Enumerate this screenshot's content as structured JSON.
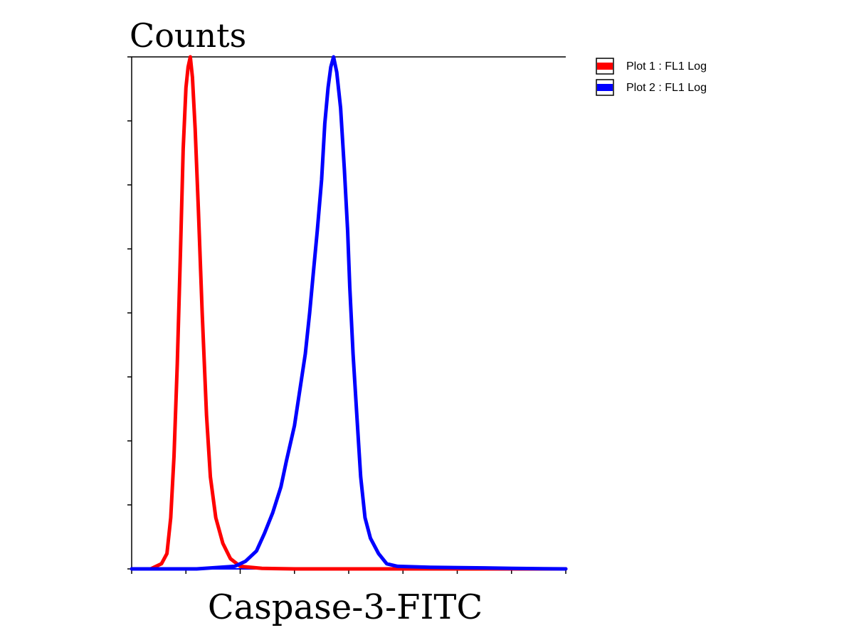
{
  "chart_data": {
    "type": "line",
    "title": "",
    "ylabel": "Counts",
    "xlabel": "Caspase-3-FITC",
    "x_scale": "log",
    "x_tick_count": 8,
    "y_tick_count": 8,
    "xlim": [
      0,
      8
    ],
    "ylim": [
      0,
      1
    ],
    "grid": false,
    "legend_position": "top-right (outside plot)",
    "series": [
      {
        "name": "Plot 1 : FL1 Log",
        "color": "#ff0000",
        "points": [
          [
            0.35,
            0.0
          ],
          [
            0.55,
            0.01
          ],
          [
            0.65,
            0.03
          ],
          [
            0.72,
            0.1
          ],
          [
            0.78,
            0.22
          ],
          [
            0.84,
            0.4
          ],
          [
            0.9,
            0.62
          ],
          [
            0.95,
            0.82
          ],
          [
            1.0,
            0.94
          ],
          [
            1.04,
            0.98
          ],
          [
            1.08,
            1.0
          ],
          [
            1.12,
            0.96
          ],
          [
            1.17,
            0.86
          ],
          [
            1.23,
            0.7
          ],
          [
            1.3,
            0.5
          ],
          [
            1.38,
            0.3
          ],
          [
            1.45,
            0.18
          ],
          [
            1.55,
            0.1
          ],
          [
            1.68,
            0.05
          ],
          [
            1.82,
            0.02
          ],
          [
            2.0,
            0.005
          ],
          [
            2.4,
            0.001
          ],
          [
            3.0,
            0.0
          ],
          [
            8.0,
            0.0
          ]
        ]
      },
      {
        "name": "Plot 2 : FL1 Log",
        "color": "#0000ff",
        "points": [
          [
            0.0,
            0.0
          ],
          [
            1.2,
            0.0
          ],
          [
            1.9,
            0.005
          ],
          [
            2.1,
            0.015
          ],
          [
            2.3,
            0.035
          ],
          [
            2.45,
            0.07
          ],
          [
            2.6,
            0.11
          ],
          [
            2.75,
            0.16
          ],
          [
            2.85,
            0.21
          ],
          [
            3.0,
            0.28
          ],
          [
            3.1,
            0.35
          ],
          [
            3.2,
            0.42
          ],
          [
            3.28,
            0.5
          ],
          [
            3.35,
            0.58
          ],
          [
            3.42,
            0.66
          ],
          [
            3.5,
            0.76
          ],
          [
            3.56,
            0.87
          ],
          [
            3.62,
            0.94
          ],
          [
            3.67,
            0.98
          ],
          [
            3.72,
            1.0
          ],
          [
            3.78,
            0.97
          ],
          [
            3.85,
            0.9
          ],
          [
            3.92,
            0.78
          ],
          [
            3.98,
            0.66
          ],
          [
            4.02,
            0.55
          ],
          [
            4.08,
            0.42
          ],
          [
            4.15,
            0.3
          ],
          [
            4.22,
            0.18
          ],
          [
            4.3,
            0.1
          ],
          [
            4.4,
            0.06
          ],
          [
            4.55,
            0.03
          ],
          [
            4.7,
            0.01
          ],
          [
            4.9,
            0.005
          ],
          [
            5.5,
            0.003
          ],
          [
            6.5,
            0.002
          ],
          [
            7.0,
            0.001
          ],
          [
            8.0,
            0.0
          ]
        ]
      }
    ]
  }
}
